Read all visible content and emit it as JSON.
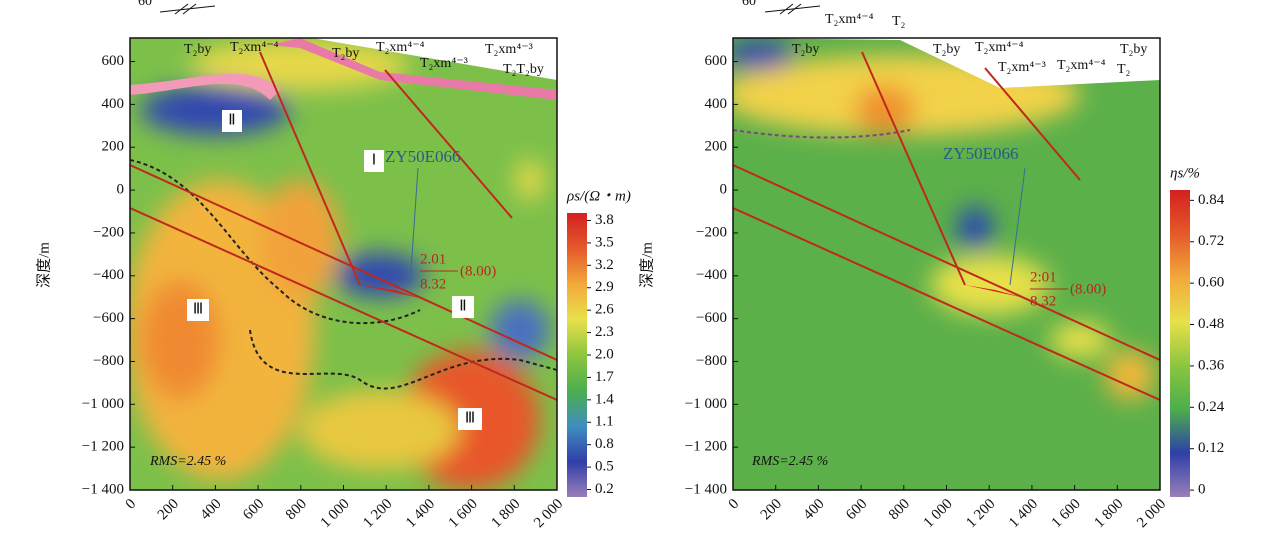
{
  "chart_data": [
    {
      "type": "contour",
      "ylabel": "深度/m",
      "xlim": [
        0,
        2000
      ],
      "ylim": [
        -1400,
        710
      ],
      "xticks": [
        0,
        200,
        400,
        600,
        800,
        {
          "value": 1000,
          "label": "1 000"
        },
        {
          "value": 1200,
          "label": "1 200"
        },
        {
          "value": 1400,
          "label": "1 400"
        },
        {
          "value": 1600,
          "label": "1 600"
        },
        {
          "value": 1800,
          "label": "1 800"
        },
        {
          "value": 2000,
          "label": "2 000"
        }
      ],
      "yticks": [
        600,
        400,
        200,
        0,
        {
          "value": -200,
          "label": "−200"
        },
        {
          "value": -400,
          "label": "−400"
        },
        {
          "value": -600,
          "label": "−600"
        },
        {
          "value": -800,
          "label": "−800"
        },
        {
          "value": -1000,
          "label": "−1 000"
        },
        {
          "value": -1200,
          "label": "−1 200"
        },
        {
          "value": -1400,
          "label": "−1 400"
        }
      ],
      "colorbar": {
        "label": "ρs/(Ω・m)",
        "clim": [
          0.1,
          3.9
        ],
        "ticks": [
          0.2,
          0.5,
          0.8,
          1.1,
          1.4,
          1.7,
          {
            "value": 2,
            "label": "2.0"
          },
          2.3,
          2.6,
          2.9,
          3.2,
          3.5,
          3.8
        ],
        "colors": [
          "#9a7fb8",
          "#2f3fa8",
          "#3f8fc0",
          "#4cae4c",
          "#8cc63f",
          "#e8e04a",
          "#f2a93b",
          "#e45a2a",
          "#d42020"
        ]
      },
      "annotations": {
        "dip": "60",
        "rms": "RMS=2.45 %",
        "borehole": "ZY50E066",
        "ratio_top": "2.01",
        "ratio_bottom": "8.32",
        "ratio_note": "(8.00)",
        "regions": [
          "Ⅰ",
          "Ⅱ",
          "Ⅱ",
          "Ⅲ",
          "Ⅲ"
        ],
        "strata": [
          "T₂by",
          "T₂xm⁴⁻⁴",
          "T₂by",
          "T₂xm⁴⁻⁴",
          "T₂xm⁴⁻³",
          "T₂xm⁴⁻³",
          "T₂T₂by"
        ]
      }
    },
    {
      "type": "contour",
      "ylabel": "深度/m",
      "xlim": [
        0,
        2000
      ],
      "ylim": [
        -1400,
        710
      ],
      "xticks": [
        0,
        200,
        400,
        600,
        800,
        {
          "value": 1000,
          "label": "1 000"
        },
        {
          "value": 1200,
          "label": "1 200"
        },
        {
          "value": 1400,
          "label": "1 400"
        },
        {
          "value": 1600,
          "label": "1 600"
        },
        {
          "value": 1800,
          "label": "1 800"
        },
        {
          "value": 2000,
          "label": "2 000"
        }
      ],
      "yticks": [
        600,
        400,
        200,
        0,
        {
          "value": -200,
          "label": "−200"
        },
        {
          "value": -400,
          "label": "−400"
        },
        {
          "value": -600,
          "label": "−600"
        },
        {
          "value": -800,
          "label": "−800"
        },
        {
          "value": -1000,
          "label": "−1 000"
        },
        {
          "value": -1200,
          "label": "−1 200"
        },
        {
          "value": -1400,
          "label": "−1 400"
        }
      ],
      "colorbar": {
        "label": "ηs/%",
        "clim": [
          -0.02,
          0.87
        ],
        "ticks": [
          0,
          0.12,
          0.24,
          0.36,
          0.48,
          {
            "value": 0.6,
            "label": "0.60"
          },
          0.72,
          0.84
        ],
        "colors": [
          "#9a7fb8",
          "#2f3fa8",
          "#4cae4c",
          "#8cc63f",
          "#e8e04a",
          "#f2a93b",
          "#e45a2a",
          "#d42020"
        ]
      },
      "annotations": {
        "dip": "60",
        "rms": "RMS=2.45 %",
        "borehole": "ZY50E066",
        "ratio_top": "2:01",
        "ratio_bottom": "8.32",
        "ratio_note": "(8.00)",
        "strata": [
          "T₂xm⁴⁻⁴",
          "T₂",
          "T₂by",
          "T₂by",
          "T₂xm⁴⁻⁴",
          "T₂xm⁴⁻³",
          "T₂xm⁴⁻⁴",
          "T₂",
          "T₂by"
        ]
      }
    }
  ]
}
